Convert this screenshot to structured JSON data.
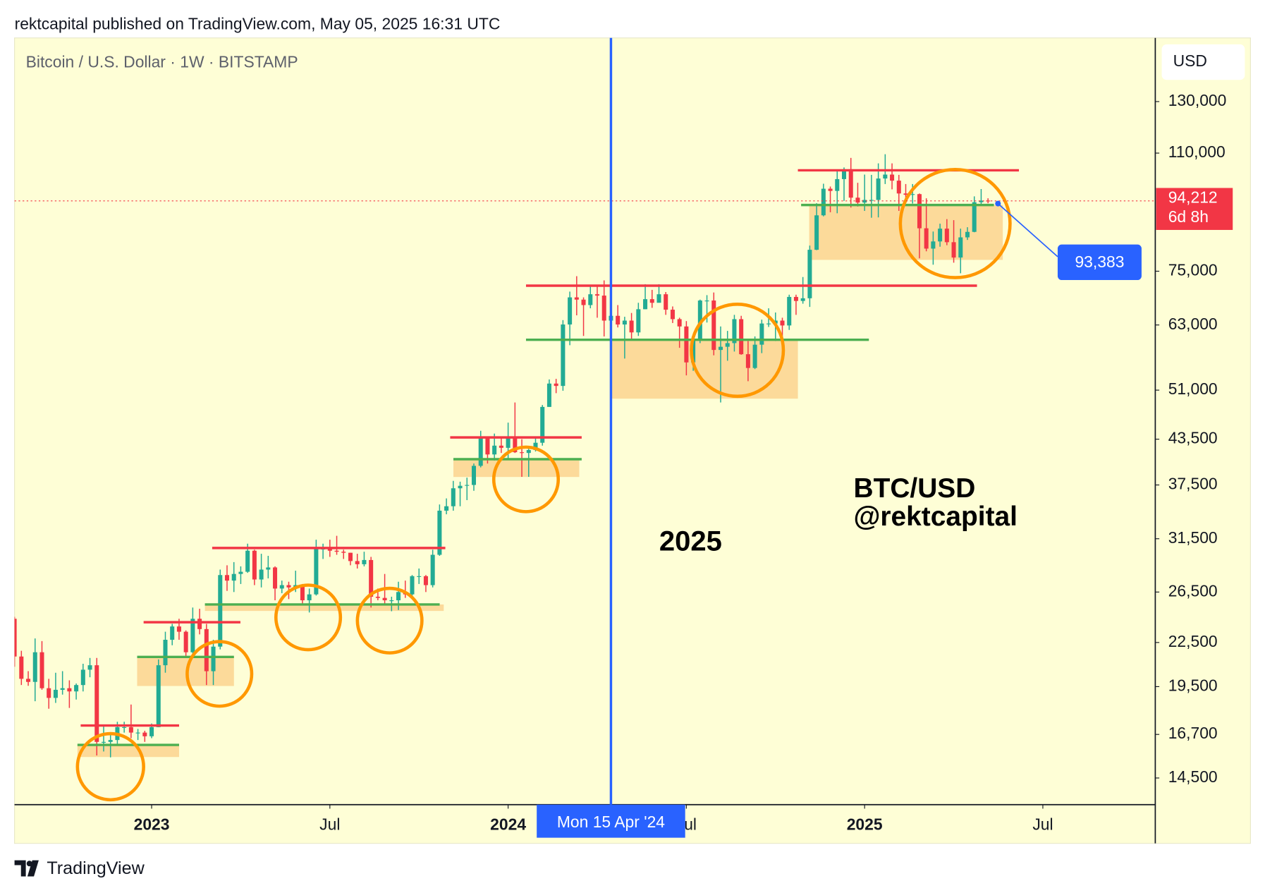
{
  "header": "rektcapital published on TradingView.com, May 05, 2025 16:31 UTC",
  "footer": "TradingView",
  "chart_data": {
    "type": "candlestick",
    "title": "Bitcoin / U.S. Dollar · 1W · BITSTAMP",
    "currency": "USD",
    "up_color": "#22ab94",
    "down_color": "#f23645",
    "log_scale": true,
    "ylim": [
      13300,
      159800
    ],
    "yticks": [
      {
        "value": 14500,
        "label": "14,500"
      },
      {
        "value": 16700,
        "label": "16,700"
      },
      {
        "value": 19500,
        "label": "19,500"
      },
      {
        "value": 22500,
        "label": "22,500"
      },
      {
        "value": 26500,
        "label": "26,500"
      },
      {
        "value": 31500,
        "label": "31,500"
      },
      {
        "value": 37500,
        "label": "37,500"
      },
      {
        "value": 43500,
        "label": "43,500"
      },
      {
        "value": 51000,
        "label": "51,000"
      },
      {
        "value": 63000,
        "label": "63,000"
      },
      {
        "value": 75000,
        "label": "75,000"
      },
      {
        "value": 110000,
        "label": "110,000"
      },
      {
        "value": 130000,
        "label": "130,000"
      }
    ],
    "xlim": [
      0,
      166.4
    ],
    "xticks": [
      {
        "value": 20,
        "label": "2023"
      },
      {
        "value": 46,
        "label": "Jul"
      },
      {
        "value": 72,
        "label": "2024"
      },
      {
        "value": 98,
        "label": "Jul"
      },
      {
        "value": 124,
        "label": "2025"
      },
      {
        "value": 150,
        "label": "Jul"
      }
    ],
    "candles": [
      [
        24300,
        24450,
        20800,
        21500
      ],
      [
        21500,
        21900,
        19600,
        20000
      ],
      [
        20000,
        20500,
        19550,
        19800
      ],
      [
        19800,
        22800,
        18600,
        21800
      ],
      [
        21800,
        22600,
        19300,
        19400
      ],
      [
        19400,
        20000,
        18150,
        18800
      ],
      [
        18800,
        20400,
        18500,
        19300
      ],
      [
        19300,
        20500,
        19000,
        19400
      ],
      [
        19400,
        19900,
        18200,
        19200
      ],
      [
        19200,
        19700,
        18700,
        19600
      ],
      [
        19600,
        21000,
        19200,
        20600
      ],
      [
        20600,
        21400,
        20100,
        20900
      ],
      [
        20900,
        21400,
        15600,
        16300
      ],
      [
        16300,
        17200,
        15800,
        16300
      ],
      [
        16300,
        16800,
        15500,
        16400
      ],
      [
        16400,
        17400,
        16100,
        17100
      ],
      [
        17100,
        17400,
        16800,
        17100
      ],
      [
        17100,
        18400,
        16500,
        16800
      ],
      [
        16800,
        17000,
        16400,
        16800
      ],
      [
        16800,
        16900,
        16300,
        16600
      ],
      [
        16600,
        17300,
        16500,
        17100
      ],
      [
        17100,
        21300,
        17100,
        20900
      ],
      [
        20900,
        23300,
        20400,
        22700
      ],
      [
        22700,
        23900,
        22300,
        23700
      ],
      [
        23700,
        24300,
        22700,
        23300
      ],
      [
        23300,
        23400,
        21400,
        21800
      ],
      [
        21800,
        25200,
        21400,
        24300
      ],
      [
        24300,
        25100,
        23100,
        23500
      ],
      [
        23500,
        23900,
        19600,
        20500
      ],
      [
        20500,
        22700,
        19600,
        22200
      ],
      [
        22200,
        28500,
        22000,
        28000
      ],
      [
        28000,
        28900,
        26600,
        27500
      ],
      [
        27500,
        29200,
        26500,
        28100
      ],
      [
        28100,
        28800,
        27200,
        28300
      ],
      [
        28300,
        31000,
        28200,
        30300
      ],
      [
        30300,
        30400,
        27100,
        27600
      ],
      [
        27600,
        30000,
        26900,
        28500
      ],
      [
        28500,
        29800,
        27700,
        28700
      ],
      [
        28700,
        28800,
        25800,
        26800
      ],
      [
        26800,
        27500,
        26400,
        27100
      ],
      [
        27100,
        27400,
        25900,
        26900
      ],
      [
        26900,
        28400,
        26500,
        27100
      ],
      [
        27100,
        27200,
        25400,
        25800
      ],
      [
        25800,
        26800,
        24800,
        26300
      ],
      [
        26300,
        31400,
        26200,
        30500
      ],
      [
        30500,
        31000,
        29500,
        30500
      ],
      [
        30500,
        31400,
        29700,
        30300
      ],
      [
        30300,
        31800,
        29900,
        30200
      ],
      [
        30200,
        30400,
        29500,
        30100
      ],
      [
        30100,
        30100,
        28900,
        29300
      ],
      [
        29300,
        30000,
        28600,
        29000
      ],
      [
        29000,
        30200,
        28800,
        29400
      ],
      [
        29400,
        29700,
        25200,
        26100
      ],
      [
        26100,
        26800,
        25800,
        26000
      ],
      [
        26000,
        28100,
        25400,
        25800
      ],
      [
        25800,
        26100,
        24900,
        25800
      ],
      [
        25800,
        27400,
        25000,
        26500
      ],
      [
        26500,
        27500,
        26000,
        26300
      ],
      [
        26300,
        28000,
        26100,
        27900
      ],
      [
        27900,
        28600,
        27200,
        27900
      ],
      [
        27900,
        28000,
        26500,
        27100
      ],
      [
        27100,
        30400,
        26900,
        29900
      ],
      [
        29900,
        35200,
        29800,
        34500
      ],
      [
        34500,
        35900,
        34100,
        35000
      ],
      [
        35000,
        38000,
        34500,
        37100
      ],
      [
        37100,
        37900,
        35000,
        37400
      ],
      [
        37400,
        38400,
        35700,
        37500
      ],
      [
        37500,
        40200,
        36800,
        39900
      ],
      [
        39900,
        44700,
        39700,
        43700
      ],
      [
        43700,
        43800,
        40200,
        41400
      ],
      [
        41400,
        44300,
        40600,
        42600
      ],
      [
        42600,
        43800,
        41600,
        42300
      ],
      [
        42300,
        45900,
        40700,
        43900
      ],
      [
        43900,
        49000,
        41600,
        41700
      ],
      [
        41700,
        43500,
        38500,
        41600
      ],
      [
        41600,
        42200,
        38500,
        42000
      ],
      [
        42000,
        43900,
        41800,
        43000
      ],
      [
        43000,
        48600,
        42600,
        48300
      ],
      [
        48300,
        52800,
        48300,
        52100
      ],
      [
        52100,
        52900,
        50500,
        51700
      ],
      [
        51700,
        64000,
        50900,
        63100
      ],
      [
        63100,
        70200,
        59000,
        68900
      ],
      [
        68900,
        73800,
        65000,
        68400
      ],
      [
        68400,
        68900,
        60800,
        67200
      ],
      [
        67200,
        71800,
        66500,
        69600
      ],
      [
        69600,
        71400,
        64500,
        69300
      ],
      [
        69300,
        72800,
        60700,
        63900
      ],
      [
        63900,
        66900,
        59600,
        64900
      ],
      [
        64900,
        67200,
        62500,
        63100
      ],
      [
        63100,
        64700,
        56500,
        63900
      ],
      [
        63900,
        65500,
        60200,
        61500
      ],
      [
        61500,
        67700,
        60800,
        66300
      ],
      [
        66300,
        71900,
        66300,
        68500
      ],
      [
        68500,
        70600,
        66600,
        67700
      ],
      [
        67700,
        71900,
        68400,
        69600
      ],
      [
        69600,
        70100,
        65100,
        66200
      ],
      [
        66200,
        66900,
        63400,
        64200
      ],
      [
        64200,
        64500,
        58500,
        62700
      ],
      [
        62700,
        63800,
        53500,
        55800
      ],
      [
        55800,
        60300,
        54300,
        60000
      ],
      [
        60000,
        68400,
        59400,
        68200
      ],
      [
        68200,
        69400,
        63500,
        68200
      ],
      [
        68200,
        70000,
        57100,
        58100
      ],
      [
        58100,
        62700,
        49000,
        58700
      ],
      [
        58700,
        61800,
        56100,
        59400
      ],
      [
        59400,
        65100,
        57800,
        64200
      ],
      [
        64200,
        64900,
        57200,
        57300
      ],
      [
        57300,
        59800,
        52500,
        54800
      ],
      [
        54800,
        60700,
        54600,
        59100
      ],
      [
        59100,
        64100,
        57500,
        63300
      ],
      [
        63300,
        66500,
        62600,
        63300
      ],
      [
        63300,
        65600,
        59800,
        63900
      ],
      [
        63900,
        64500,
        58900,
        62900
      ],
      [
        62900,
        69500,
        62000,
        69000
      ],
      [
        69000,
        69500,
        65100,
        68100
      ],
      [
        68100,
        73600,
        67500,
        68700
      ],
      [
        68700,
        81500,
        66800,
        80400
      ],
      [
        80400,
        93500,
        80300,
        89900
      ],
      [
        89900,
        99600,
        89600,
        98000
      ],
      [
        98000,
        98700,
        90800,
        97300
      ],
      [
        97300,
        104000,
        90500,
        101100
      ],
      [
        101100,
        105000,
        94200,
        104400
      ],
      [
        104400,
        108300,
        92200,
        95200
      ],
      [
        95200,
        99900,
        92500,
        93700
      ],
      [
        93700,
        102600,
        91200,
        94500
      ],
      [
        94500,
        102500,
        89200,
        94500
      ],
      [
        94500,
        106400,
        89300,
        101300
      ],
      [
        101300,
        109600,
        99500,
        102600
      ],
      [
        102600,
        106400,
        97800,
        100600
      ],
      [
        100600,
        102500,
        91200,
        96500
      ],
      [
        96500,
        99500,
        94100,
        96100
      ],
      [
        96100,
        99500,
        93400,
        96300
      ],
      [
        96300,
        96500,
        78200,
        86200
      ],
      [
        86200,
        95000,
        80000,
        80700
      ],
      [
        80700,
        85300,
        76600,
        82600
      ],
      [
        82600,
        87500,
        81200,
        86100
      ],
      [
        86100,
        88800,
        81600,
        82400
      ],
      [
        82400,
        88500,
        77100,
        78400
      ],
      [
        78400,
        86100,
        74500,
        83700
      ],
      [
        83700,
        86500,
        83000,
        85200
      ],
      [
        85200,
        95600,
        85100,
        93800
      ],
      [
        93800,
        97900,
        92900,
        94300
      ],
      [
        94300,
        95000,
        93500,
        94200
      ]
    ],
    "last_price": {
      "value": 94212,
      "label": "94,212"
    },
    "countdown": "6d 8h",
    "callout": {
      "value": 93383,
      "label": "93,383"
    },
    "crosshair": {
      "value": 87,
      "label": "Mon 15 Apr '24"
    },
    "annotations": [
      "2025",
      "BTC/USD",
      "@rektcapital"
    ]
  }
}
